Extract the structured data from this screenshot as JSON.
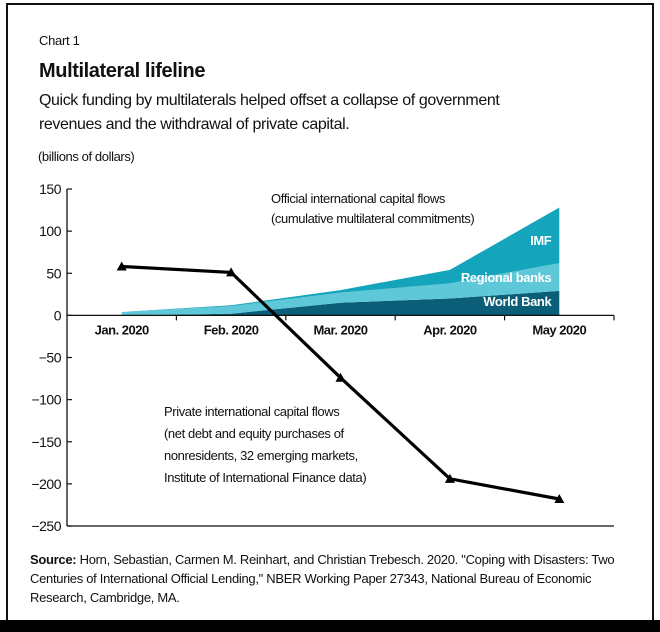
{
  "header": {
    "kicker": "Chart 1",
    "title": "Multilateral lifeline",
    "subtitle": "Quick funding by multilaterals helped offset a collapse of government revenues and the withdrawal of private capital.",
    "unit": "(billions of dollars)"
  },
  "source": {
    "label": "Source:",
    "text": " Horn, Sebastian, Carmen M. Reinhart, and Christian Trebesch. 2020. \"Coping with Disasters: Two Centuries of International Official Lending,\" NBER Working Paper 27343, National Bureau of Economic Research, Cambridge, MA."
  },
  "chart_data": {
    "type": "area",
    "title": "Multilateral lifeline",
    "ylabel": "(billions of dollars)",
    "xlabel": "",
    "ylim": [
      -250,
      150
    ],
    "yticks": [
      150,
      100,
      50,
      0,
      -50,
      -100,
      -150,
      -200,
      -250
    ],
    "ytick_labels": [
      "150",
      "100",
      "50",
      "0",
      "−50",
      "−100",
      "−150",
      "−200",
      "−250"
    ],
    "categories": [
      "Jan. 2020",
      "Feb. 2020",
      "Mar. 2020",
      "Apr. 2020",
      "May 2020"
    ],
    "grid": false,
    "stacked_series": [
      {
        "name": "World Bank",
        "values": [
          0,
          2,
          15,
          20,
          29
        ],
        "color": "#0b5e77"
      },
      {
        "name": "Regional banks",
        "values": [
          4,
          9,
          12,
          18,
          33
        ],
        "color": "#5ec8d8"
      },
      {
        "name": "IMF",
        "values": [
          0,
          1,
          3,
          16,
          66
        ],
        "color": "#14a4bb"
      }
    ],
    "line_series": [
      {
        "name": "Private international capital flows",
        "values": [
          58,
          51,
          -74,
          -194,
          -218
        ],
        "color": "#000000"
      }
    ],
    "annotations": {
      "official": [
        "Official international capital flows",
        "(cumulative multilateral commitments)"
      ],
      "private": [
        "Private international capital flows",
        "(net debt and equity purchases of",
        "nonresidents, 32 emerging markets,",
        "Institute of International Finance data)"
      ]
    }
  }
}
